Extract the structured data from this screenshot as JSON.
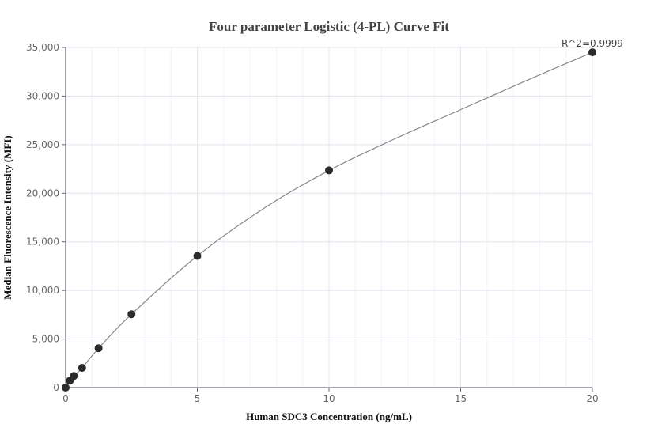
{
  "chart_data": {
    "type": "scatter",
    "title": "Four parameter Logistic (4-PL) Curve Fit",
    "xlabel": "Human SDC3 Concentration (ng/mL)",
    "ylabel": "Median Fluorescence Intensity (MFI)",
    "xlim": [
      0,
      20
    ],
    "ylim": [
      0,
      35000
    ],
    "x_ticks": [
      0,
      5,
      10,
      15,
      20
    ],
    "x_tick_labels": [
      "0",
      "5",
      "10",
      "15",
      "20"
    ],
    "y_ticks": [
      0,
      5000,
      10000,
      15000,
      20000,
      25000,
      30000,
      35000
    ],
    "y_tick_labels": [
      "0",
      "5,000",
      "10,000",
      "15,000",
      "20,000",
      "25,000",
      "30,000",
      "35,000"
    ],
    "grid": true,
    "legend": "none",
    "annotations": [
      "R^2=0.9999"
    ],
    "series": [
      {
        "name": "Standards",
        "x": [
          0,
          0.156,
          0.3125,
          0.625,
          1.25,
          2.5,
          5,
          10,
          20
        ],
        "y": [
          0,
          700,
          1200,
          2030,
          4050,
          7550,
          13550,
          22350,
          34500
        ]
      },
      {
        "name": "4-PL fit",
        "type": "line",
        "x": [
          0,
          0.156,
          0.3125,
          0.625,
          1.25,
          2.5,
          5,
          7.5,
          10,
          12.5,
          15,
          17.5,
          20
        ],
        "y": [
          0,
          700,
          1200,
          2030,
          4050,
          7550,
          13550,
          18400,
          22350,
          25600,
          28600,
          31600,
          34500
        ]
      }
    ]
  }
}
